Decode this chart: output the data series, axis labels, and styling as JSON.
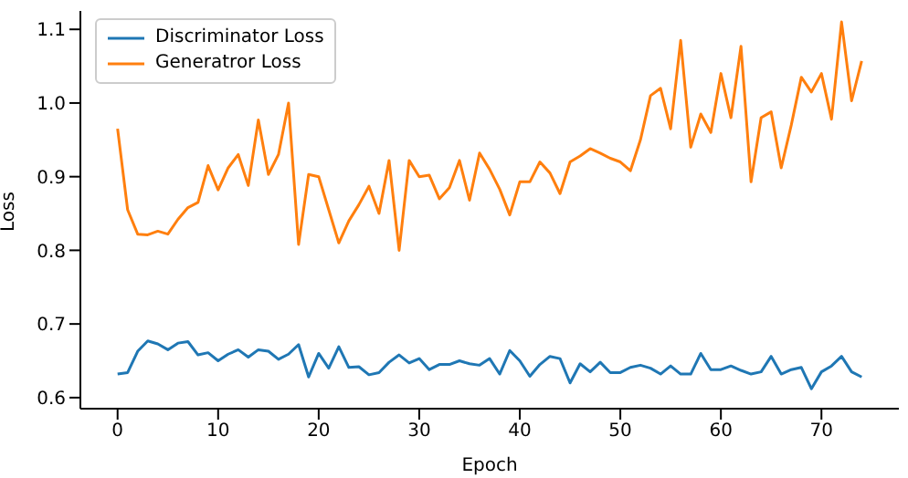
{
  "chart_data": {
    "type": "line",
    "xlabel": "Epoch",
    "ylabel": "Loss",
    "x": [
      0,
      1,
      2,
      3,
      4,
      5,
      6,
      7,
      8,
      9,
      10,
      11,
      12,
      13,
      14,
      15,
      16,
      17,
      18,
      19,
      20,
      21,
      22,
      23,
      24,
      25,
      26,
      27,
      28,
      29,
      30,
      31,
      32,
      33,
      34,
      35,
      36,
      37,
      38,
      39,
      40,
      41,
      42,
      43,
      44,
      45,
      46,
      47,
      48,
      49,
      50,
      51,
      52,
      53,
      54,
      55,
      56,
      57,
      58,
      59,
      60,
      61,
      62,
      63,
      64,
      65,
      66,
      67,
      68,
      69,
      70,
      71,
      72,
      73,
      74
    ],
    "series": [
      {
        "name": "Discriminator Loss",
        "color": "#1f77b4",
        "values": [
          0.632,
          0.634,
          0.663,
          0.677,
          0.673,
          0.665,
          0.674,
          0.676,
          0.658,
          0.661,
          0.65,
          0.659,
          0.665,
          0.655,
          0.665,
          0.663,
          0.652,
          0.659,
          0.672,
          0.628,
          0.66,
          0.64,
          0.669,
          0.641,
          0.642,
          0.631,
          0.634,
          0.648,
          0.658,
          0.647,
          0.653,
          0.638,
          0.645,
          0.645,
          0.65,
          0.646,
          0.644,
          0.653,
          0.632,
          0.664,
          0.65,
          0.629,
          0.645,
          0.656,
          0.653,
          0.62,
          0.646,
          0.635,
          0.648,
          0.634,
          0.634,
          0.641,
          0.644,
          0.64,
          0.632,
          0.643,
          0.632,
          0.632,
          0.66,
          0.638,
          0.638,
          0.643,
          0.637,
          0.632,
          0.635,
          0.656,
          0.632,
          0.638,
          0.641,
          0.612,
          0.635,
          0.643,
          0.656,
          0.635,
          0.628
        ]
      },
      {
        "name": "Generatror Loss",
        "color": "#ff7f0e",
        "values": [
          0.965,
          0.855,
          0.822,
          0.821,
          0.826,
          0.822,
          0.842,
          0.858,
          0.865,
          0.915,
          0.882,
          0.912,
          0.93,
          0.888,
          0.977,
          0.903,
          0.93,
          1.0,
          0.808,
          0.903,
          0.9,
          0.855,
          0.81,
          0.84,
          0.862,
          0.887,
          0.85,
          0.922,
          0.8,
          0.922,
          0.9,
          0.902,
          0.87,
          0.885,
          0.922,
          0.868,
          0.932,
          0.91,
          0.883,
          0.848,
          0.893,
          0.893,
          0.92,
          0.905,
          0.877,
          0.92,
          0.928,
          0.938,
          0.932,
          0.925,
          0.92,
          0.908,
          0.95,
          1.01,
          1.02,
          0.965,
          1.085,
          0.94,
          0.985,
          0.96,
          1.04,
          0.98,
          1.077,
          0.893,
          0.98,
          0.988,
          0.912,
          0.97,
          1.035,
          1.015,
          1.04,
          0.978,
          1.11,
          1.003,
          1.057
        ]
      }
    ],
    "xlim": [
      -3.7,
      77.7
    ],
    "xticks": [
      0,
      10,
      20,
      30,
      40,
      50,
      60,
      70
    ],
    "ylim": [
      0.585,
      1.125
    ],
    "yticks": [
      0.6,
      0.7,
      0.8,
      0.9,
      {
        "value": 1,
        "label": "1.0"
      },
      1.1
    ],
    "legend": "top left",
    "grid": false,
    "marker": "none",
    "line_style": "solid"
  }
}
